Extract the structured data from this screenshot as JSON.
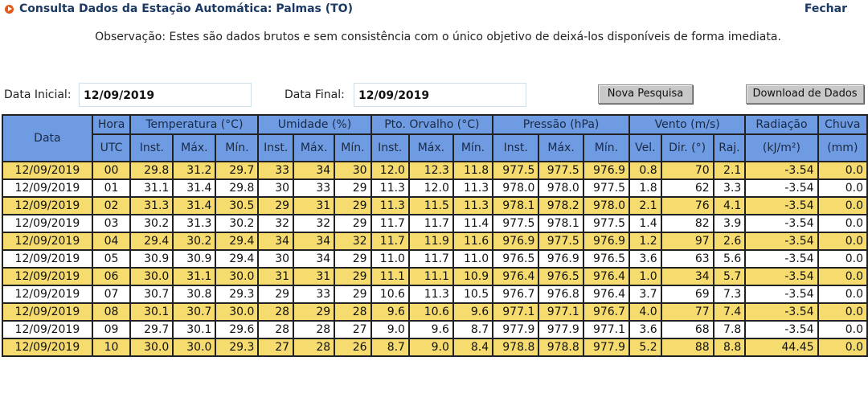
{
  "header": {
    "title": "Consulta Dados da Estação Automática: Palmas (TO)",
    "close_label": "Fechar",
    "note": "Observação: Estes são dados brutos e sem consistência com o único objetivo de deixá-los disponíveis de forma imediata."
  },
  "form": {
    "start_label": "Data Inicial:",
    "start_value": "12/09/2019",
    "end_label": "Data Final:",
    "end_value": "12/09/2019",
    "search_button": "Nova Pesquisa",
    "download_button": "Download de Dados"
  },
  "colors": {
    "header_bg": "#6f9be3",
    "row_yellow": "#f6dc6f",
    "row_white": "#ffffff",
    "title_color": "#1a3a63"
  },
  "table": {
    "group_headers": [
      "Data",
      "Hora",
      "Temperatura (°C)",
      "Umidade (%)",
      "Pto. Orvalho (°C)",
      "Pressão (hPa)",
      "Vento (m/s)",
      "Radiação",
      "Chuva"
    ],
    "sub_headers": [
      "",
      "UTC",
      "Inst.",
      "Máx.",
      "Mín.",
      "Inst.",
      "Máx.",
      "Mín.",
      "Inst.",
      "Máx.",
      "Mín.",
      "Inst.",
      "Máx.",
      "Mín.",
      "Vel.",
      "Dir. (°)",
      "Raj.",
      "(kJ/m²)",
      "(mm)"
    ],
    "rows": [
      [
        "12/09/2019",
        "00",
        "29.8",
        "31.2",
        "29.7",
        "33",
        "34",
        "30",
        "12.0",
        "12.3",
        "11.8",
        "977.5",
        "977.5",
        "976.9",
        "0.8",
        "70",
        "2.1",
        "-3.54",
        "0.0"
      ],
      [
        "12/09/2019",
        "01",
        "31.1",
        "31.4",
        "29.8",
        "30",
        "33",
        "29",
        "11.3",
        "12.0",
        "11.3",
        "978.0",
        "978.0",
        "977.5",
        "1.8",
        "62",
        "3.3",
        "-3.54",
        "0.0"
      ],
      [
        "12/09/2019",
        "02",
        "31.3",
        "31.4",
        "30.5",
        "29",
        "31",
        "29",
        "11.3",
        "11.5",
        "11.3",
        "978.1",
        "978.2",
        "978.0",
        "2.1",
        "76",
        "4.1",
        "-3.54",
        "0.0"
      ],
      [
        "12/09/2019",
        "03",
        "30.2",
        "31.3",
        "30.2",
        "32",
        "32",
        "29",
        "11.7",
        "11.7",
        "11.4",
        "977.5",
        "978.1",
        "977.5",
        "1.4",
        "82",
        "3.9",
        "-3.54",
        "0.0"
      ],
      [
        "12/09/2019",
        "04",
        "29.4",
        "30.2",
        "29.4",
        "34",
        "34",
        "32",
        "11.7",
        "11.9",
        "11.6",
        "976.9",
        "977.5",
        "976.9",
        "1.2",
        "97",
        "2.6",
        "-3.54",
        "0.0"
      ],
      [
        "12/09/2019",
        "05",
        "30.9",
        "30.9",
        "29.4",
        "30",
        "34",
        "29",
        "11.0",
        "11.7",
        "11.0",
        "976.5",
        "976.9",
        "976.5",
        "3.6",
        "63",
        "5.6",
        "-3.54",
        "0.0"
      ],
      [
        "12/09/2019",
        "06",
        "30.0",
        "31.1",
        "30.0",
        "31",
        "31",
        "29",
        "11.1",
        "11.1",
        "10.9",
        "976.4",
        "976.5",
        "976.4",
        "1.0",
        "34",
        "5.7",
        "-3.54",
        "0.0"
      ],
      [
        "12/09/2019",
        "07",
        "30.7",
        "30.8",
        "29.3",
        "29",
        "33",
        "29",
        "10.6",
        "11.3",
        "10.5",
        "976.7",
        "976.8",
        "976.4",
        "3.7",
        "69",
        "7.3",
        "-3.54",
        "0.0"
      ],
      [
        "12/09/2019",
        "08",
        "30.1",
        "30.7",
        "30.0",
        "28",
        "29",
        "28",
        "9.6",
        "10.6",
        "9.6",
        "977.1",
        "977.1",
        "976.7",
        "4.0",
        "77",
        "7.4",
        "-3.54",
        "0.0"
      ],
      [
        "12/09/2019",
        "09",
        "29.7",
        "30.1",
        "29.6",
        "28",
        "28",
        "27",
        "9.0",
        "9.6",
        "8.7",
        "977.9",
        "977.9",
        "977.1",
        "3.6",
        "68",
        "7.8",
        "-3.54",
        "0.0"
      ],
      [
        "12/09/2019",
        "10",
        "30.0",
        "30.0",
        "29.3",
        "27",
        "28",
        "26",
        "8.7",
        "9.0",
        "8.4",
        "978.8",
        "978.8",
        "977.9",
        "5.2",
        "88",
        "8.8",
        "44.45",
        "0.0"
      ]
    ]
  }
}
